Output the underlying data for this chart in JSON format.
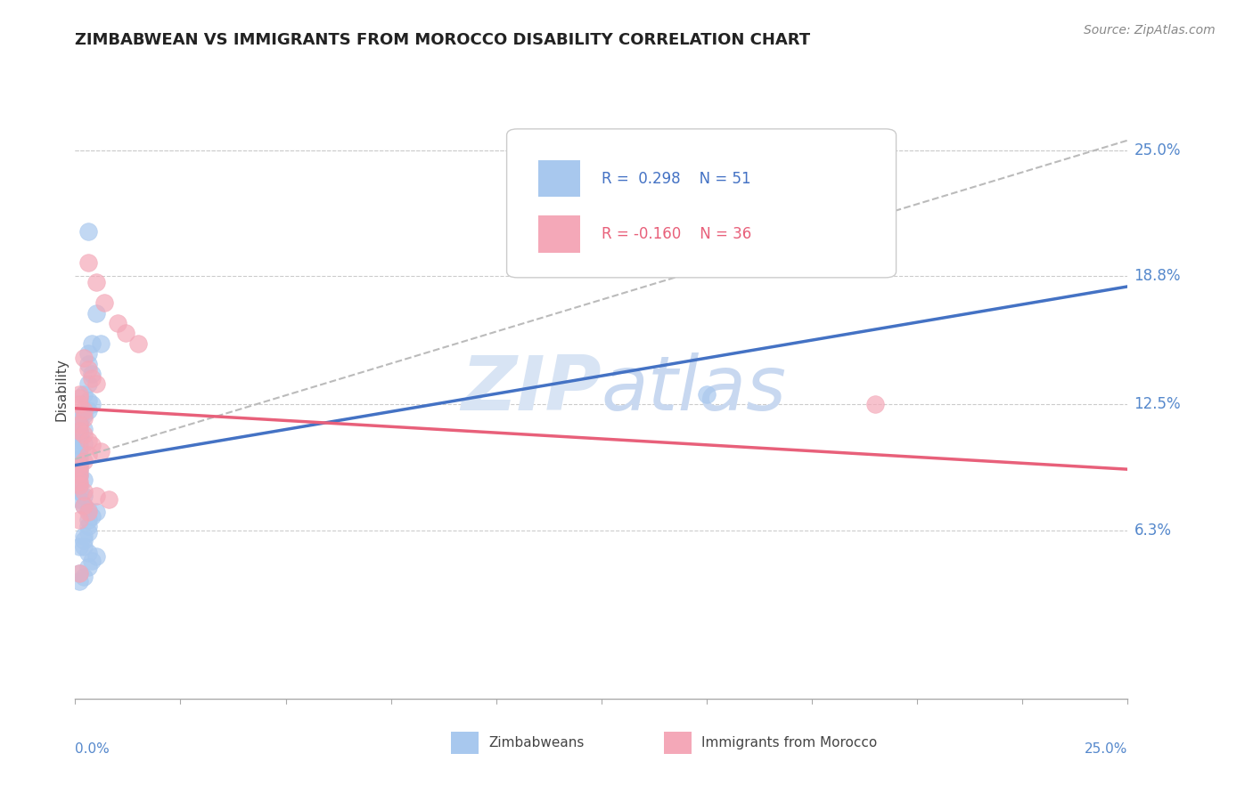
{
  "title": "ZIMBABWEAN VS IMMIGRANTS FROM MOROCCO DISABILITY CORRELATION CHART",
  "source": "Source: ZipAtlas.com",
  "blue_R": 0.298,
  "blue_N": 51,
  "pink_R": -0.16,
  "pink_N": 36,
  "blue_color": "#A8C8EE",
  "blue_line_color": "#4472C4",
  "pink_color": "#F4A8B8",
  "pink_line_color": "#E8607A",
  "dashed_line_color": "#BBBBBB",
  "grid_color": "#CCCCCC",
  "axis_color": "#AAAAAA",
  "title_color": "#222222",
  "right_label_color": "#5588CC",
  "watermark_color": "#D8E4F4",
  "legend_label1": "Zimbabweans",
  "legend_label2": "Immigrants from Morocco",
  "xmin": 0.0,
  "xmax": 0.25,
  "ymin": -0.02,
  "ymax": 0.285,
  "ytick_values": [
    0.063,
    0.125,
    0.188,
    0.25
  ],
  "ytick_labels": [
    "6.3%",
    "12.5%",
    "18.8%",
    "25.0%"
  ],
  "blue_trend_y0": 0.095,
  "blue_trend_y1": 0.183,
  "pink_trend_y0": 0.123,
  "pink_trend_y1": 0.093,
  "dashed_trend_y0": 0.098,
  "dashed_trend_y1": 0.255,
  "blue_x": [
    0.003,
    0.005,
    0.004,
    0.006,
    0.003,
    0.003,
    0.004,
    0.003,
    0.002,
    0.003,
    0.004,
    0.003,
    0.002,
    0.001,
    0.001,
    0.002,
    0.001,
    0.001,
    0.001,
    0.002,
    0.001,
    0.001,
    0.001,
    0.001,
    0.001,
    0.001,
    0.001,
    0.002,
    0.001,
    0.001,
    0.002,
    0.001,
    0.002,
    0.003,
    0.005,
    0.004,
    0.003,
    0.003,
    0.003,
    0.002,
    0.002,
    0.002,
    0.003,
    0.005,
    0.004,
    0.003,
    0.001,
    0.002,
    0.001,
    0.15,
    0.001
  ],
  "blue_y": [
    0.21,
    0.17,
    0.155,
    0.155,
    0.15,
    0.145,
    0.14,
    0.135,
    0.13,
    0.127,
    0.125,
    0.122,
    0.12,
    0.118,
    0.115,
    0.113,
    0.112,
    0.11,
    0.108,
    0.106,
    0.105,
    0.103,
    0.1,
    0.098,
    0.095,
    0.093,
    0.09,
    0.088,
    0.085,
    0.082,
    0.08,
    0.078,
    0.075,
    0.073,
    0.072,
    0.07,
    0.068,
    0.065,
    0.062,
    0.06,
    0.058,
    0.055,
    0.052,
    0.05,
    0.048,
    0.045,
    0.042,
    0.04,
    0.038,
    0.13,
    0.055
  ],
  "pink_x": [
    0.003,
    0.005,
    0.007,
    0.01,
    0.012,
    0.015,
    0.002,
    0.003,
    0.004,
    0.005,
    0.001,
    0.001,
    0.001,
    0.002,
    0.002,
    0.001,
    0.001,
    0.002,
    0.003,
    0.004,
    0.006,
    0.003,
    0.002,
    0.001,
    0.001,
    0.001,
    0.001,
    0.001,
    0.002,
    0.005,
    0.008,
    0.002,
    0.003,
    0.001,
    0.19,
    0.001
  ],
  "pink_y": [
    0.195,
    0.185,
    0.175,
    0.165,
    0.16,
    0.155,
    0.148,
    0.142,
    0.138,
    0.135,
    0.13,
    0.128,
    0.125,
    0.122,
    0.118,
    0.115,
    0.112,
    0.11,
    0.107,
    0.105,
    0.102,
    0.1,
    0.097,
    0.095,
    0.092,
    0.09,
    0.087,
    0.085,
    0.082,
    0.08,
    0.078,
    0.075,
    0.072,
    0.068,
    0.125,
    0.042
  ]
}
